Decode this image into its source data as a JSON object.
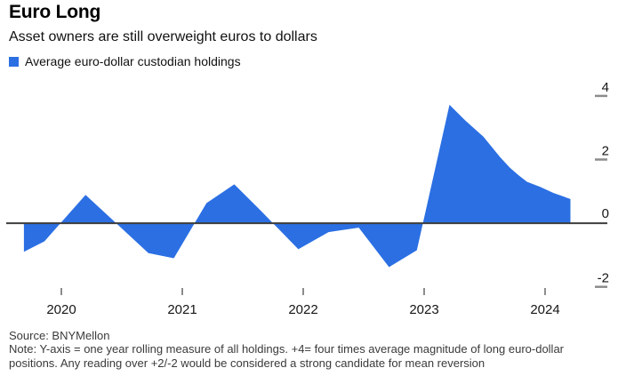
{
  "header": {
    "title": "Euro Long",
    "subtitle": "Asset owners are still overweight euros to dollars",
    "legend": {
      "label": "Average euro-dollar custodian holdings",
      "swatch_color": "#2B6FE3"
    }
  },
  "footer": {
    "source": "Source: BNYMellon",
    "note": "Note: Y-axis = one year rolling measure of all holdings. +4= four times average magnitude of long euro-dollar positions. Any reading over +2/-2 would be considered a strong candidate for mean reversion"
  },
  "chart_data": {
    "type": "area",
    "title": "Euro Long",
    "subtitle": "Asset owners are still overweight euros to dollars",
    "xlabel": "",
    "ylabel": "",
    "legend_position": "top-left",
    "grid": false,
    "baseline": 0,
    "xlim": [
      2019.544,
      2024.515
    ],
    "ylim": [
      -2.4,
      4.36
    ],
    "x_ticks": [
      2020,
      2021,
      2022,
      2023,
      2024
    ],
    "y_ticks": [
      4,
      2,
      0,
      -2
    ],
    "series": [
      {
        "name": "Average euro-dollar custodian holdings",
        "color": "#2B6FE3",
        "points": [
          [
            2019.69,
            -0.9
          ],
          [
            2019.86,
            -0.57
          ],
          [
            2020.2,
            0.89
          ],
          [
            2020.72,
            -0.94
          ],
          [
            2020.93,
            -1.1
          ],
          [
            2021.2,
            0.63
          ],
          [
            2021.43,
            1.22
          ],
          [
            2021.65,
            0.39
          ],
          [
            2021.96,
            -0.82
          ],
          [
            2022.21,
            -0.28
          ],
          [
            2022.46,
            -0.14
          ],
          [
            2022.71,
            -1.38
          ],
          [
            2022.94,
            -0.85
          ],
          [
            2023.21,
            3.72
          ],
          [
            2023.34,
            3.23
          ],
          [
            2023.49,
            2.72
          ],
          [
            2023.63,
            2.07
          ],
          [
            2023.71,
            1.74
          ],
          [
            2023.78,
            1.51
          ],
          [
            2023.85,
            1.3
          ],
          [
            2023.96,
            1.14
          ],
          [
            2024.07,
            0.95
          ],
          [
            2024.21,
            0.76
          ]
        ]
      }
    ],
    "axis_colors": {
      "zero_line": "#3d3d3d",
      "tick": "#8c8c8c",
      "label": "#161616"
    }
  }
}
